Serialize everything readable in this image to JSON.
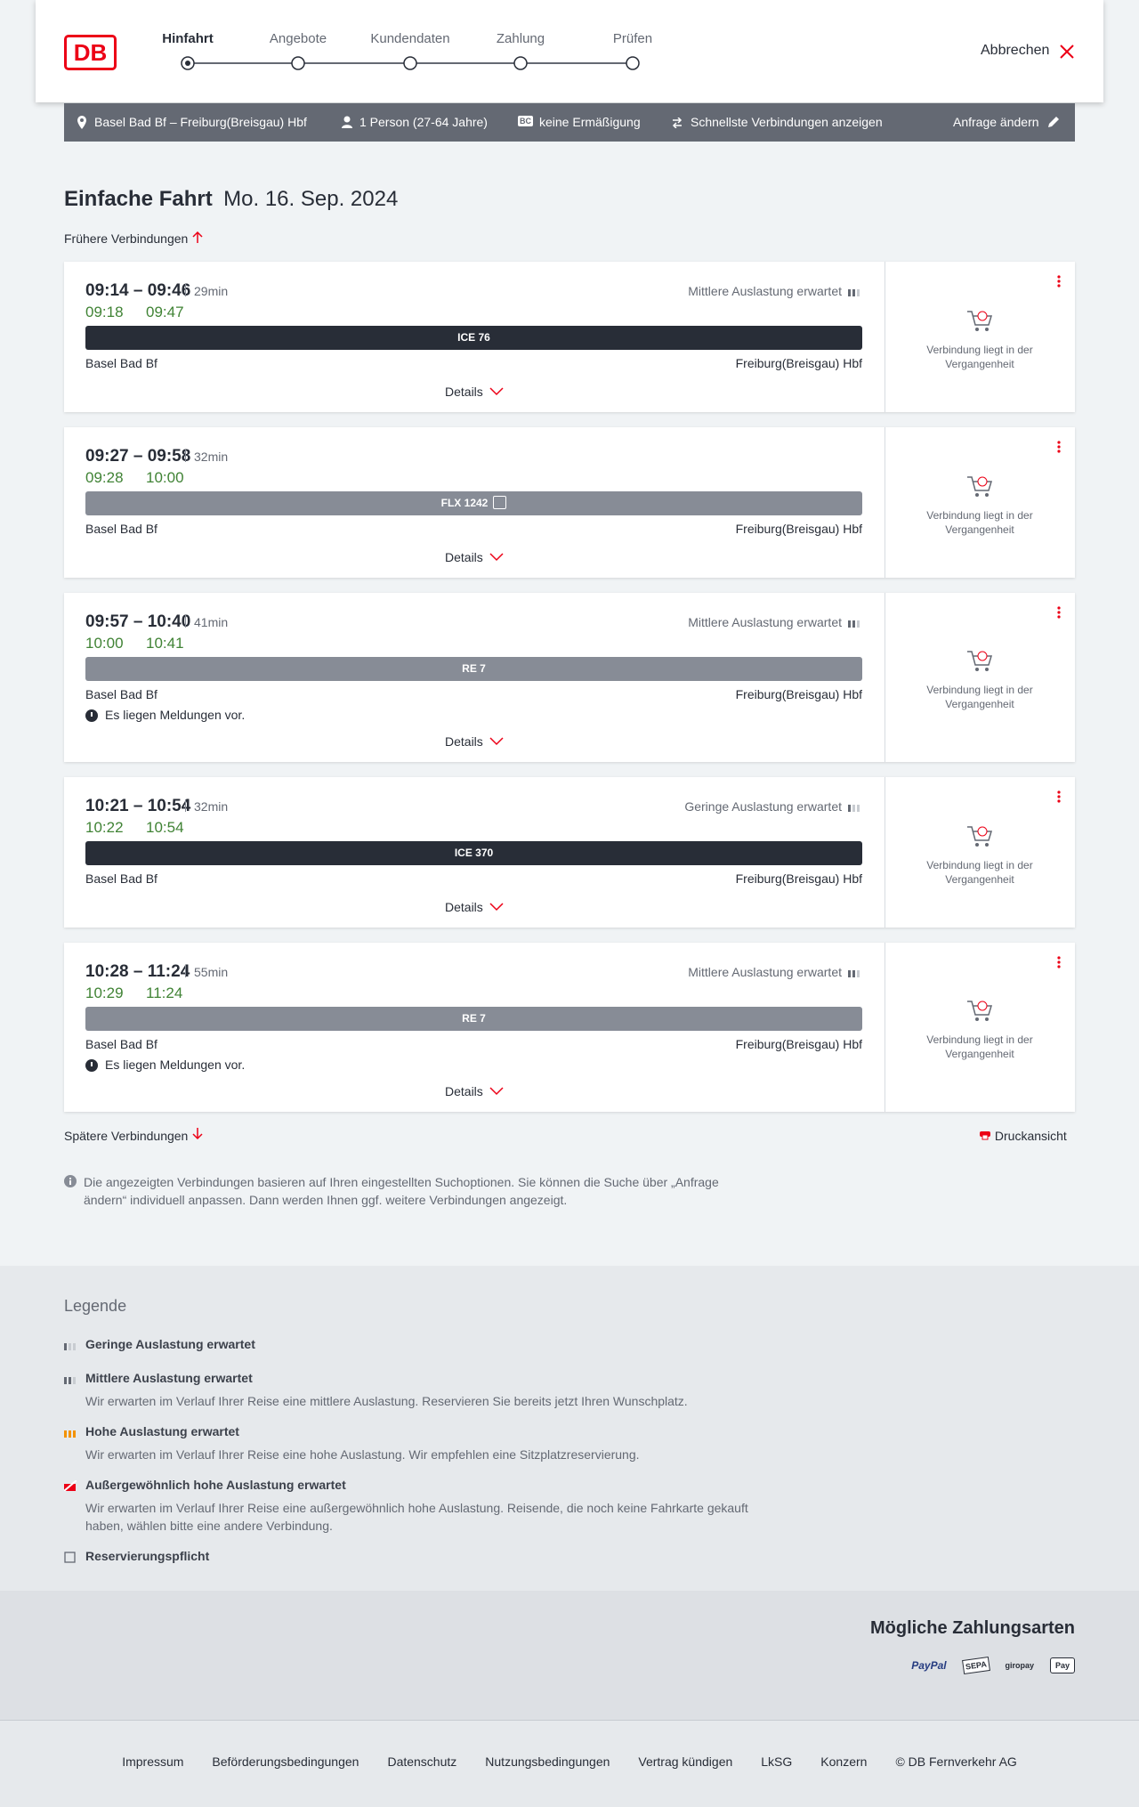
{
  "header": {
    "logo": "DB",
    "steps": [
      "Hinfahrt",
      "Angebote",
      "Kundendaten",
      "Zahlung",
      "Prüfen"
    ],
    "active_step": 0,
    "cancel": "Abbrechen"
  },
  "summary": {
    "route": "Basel Bad Bf – Freiburg(Breisgau) Hbf",
    "persons": "1 Person (27-64 Jahre)",
    "bc": "BC",
    "discount": "keine Ermäßigung",
    "fastest": "Schnellste Verbindungen anzeigen",
    "change": "Anfrage ändern"
  },
  "title": "Einfache Fahrt",
  "date": "Mo. 16. Sep. 2024",
  "earlier": "Frühere Verbindungen",
  "later": "Spätere Verbindungen",
  "print": "Druckansicht",
  "connections": [
    {
      "time": "09:14 – 09:46",
      "duration": "29min",
      "rt_dep": "09:18",
      "rt_arr": "09:47",
      "train": "ICE 76",
      "style": "dark",
      "reservation": false,
      "occupancy": "Mittlere Auslastung erwartet",
      "occ_level": 2,
      "from": "Basel Bad Bf",
      "to": "Freiburg(Breisgau) Hbf",
      "message": null,
      "details": "Details",
      "status": "Verbindung liegt in der Vergangenheit"
    },
    {
      "time": "09:27 – 09:58",
      "duration": "32min",
      "rt_dep": "09:28",
      "rt_arr": "10:00",
      "train": "FLX 1242",
      "style": "gray",
      "reservation": true,
      "occupancy": null,
      "occ_level": null,
      "from": "Basel Bad Bf",
      "to": "Freiburg(Breisgau) Hbf",
      "message": null,
      "details": "Details",
      "status": "Verbindung liegt in der Vergangenheit"
    },
    {
      "time": "09:57 – 10:40",
      "duration": "41min",
      "rt_dep": "10:00",
      "rt_arr": "10:41",
      "train": "RE 7",
      "style": "gray",
      "reservation": false,
      "occupancy": "Mittlere Auslastung erwartet",
      "occ_level": 2,
      "from": "Basel Bad Bf",
      "to": "Freiburg(Breisgau) Hbf",
      "message": "Es liegen Meldungen vor.",
      "details": "Details",
      "status": "Verbindung liegt in der Vergangenheit"
    },
    {
      "time": "10:21 – 10:54",
      "duration": "32min",
      "rt_dep": "10:22",
      "rt_arr": "10:54",
      "train": "ICE 370",
      "style": "dark",
      "reservation": false,
      "occupancy": "Geringe Auslastung erwartet",
      "occ_level": 1,
      "from": "Basel Bad Bf",
      "to": "Freiburg(Breisgau) Hbf",
      "message": null,
      "details": "Details",
      "status": "Verbindung liegt in der Vergangenheit"
    },
    {
      "time": "10:28 – 11:24",
      "duration": "55min",
      "rt_dep": "10:29",
      "rt_arr": "11:24",
      "train": "RE 7",
      "style": "gray",
      "reservation": false,
      "occupancy": "Mittlere Auslastung erwartet",
      "occ_level": 2,
      "from": "Basel Bad Bf",
      "to": "Freiburg(Breisgau) Hbf",
      "message": "Es liegen Meldungen vor.",
      "details": "Details",
      "status": "Verbindung liegt in der Vergangenheit"
    }
  ],
  "info": "Die angezeigten Verbindungen basieren auf Ihren eingestellten Suchoptionen. Sie können die Suche über „Anfrage ändern“ individuell anpassen. Dann werden Ihnen ggf. weitere Verbindungen angezeigt.",
  "legend": {
    "title": "Legende",
    "items": [
      {
        "title": "Geringe Auslastung erwartet",
        "text": null,
        "icon": "low"
      },
      {
        "title": "Mittlere Auslastung erwartet",
        "text": "Wir erwarten im Verlauf Ihrer Reise eine mittlere Auslastung. Reservieren Sie bereits jetzt Ihren Wunschplatz.",
        "icon": "mid"
      },
      {
        "title": "Hohe Auslastung erwartet",
        "text": "Wir erwarten im Verlauf Ihrer Reise eine hohe Auslastung. Wir empfehlen eine Sitzplatzreservierung.",
        "icon": "high"
      },
      {
        "title": "Außergewöhnlich hohe Auslastung erwartet",
        "text": "Wir erwarten im Verlauf Ihrer Reise eine außergewöhnlich hohe Auslastung. Reisende, die noch keine Fahrkarte gekauft haben, wählen bitte eine andere Verbindung.",
        "icon": "extreme"
      },
      {
        "title": "Reservierungspflicht",
        "text": null,
        "icon": "res"
      }
    ]
  },
  "payment": {
    "title": "Mögliche Zahlungsarten",
    "methods": [
      "PayPal",
      "SEPA",
      "giropay",
      "Pay"
    ]
  },
  "footer": [
    "Impressum",
    "Beförderungsbedingungen",
    "Datenschutz",
    "Nutzungsbedingungen",
    "Vertrag kündigen",
    "LkSG",
    "Konzern",
    "© DB Fernverkehr AG"
  ]
}
